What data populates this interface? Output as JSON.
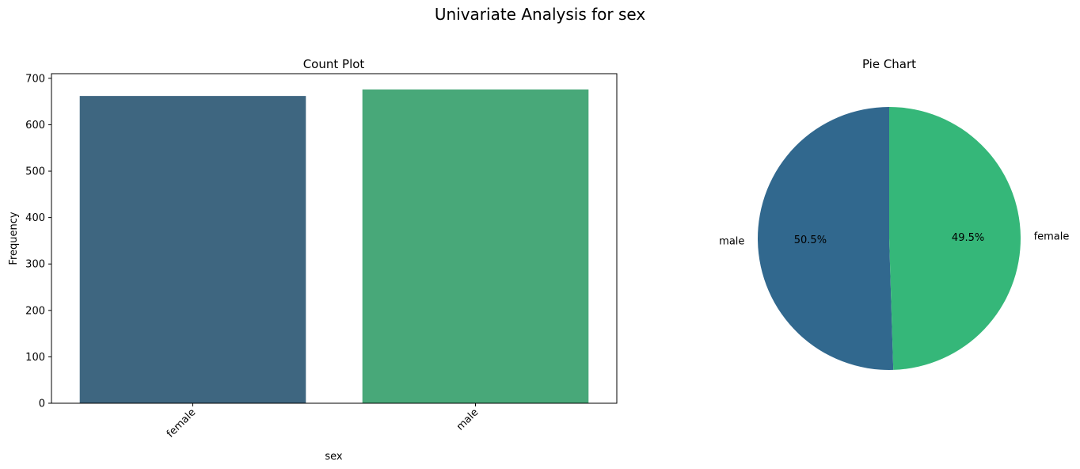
{
  "figure": {
    "title": "Univariate Analysis for sex"
  },
  "colors": {
    "female_bar": "#3e6680",
    "male_bar": "#48a879",
    "male_slice": "#31688e",
    "female_slice": "#35b779",
    "axis": "#000000",
    "background": "#ffffff"
  },
  "chart_data": [
    {
      "type": "bar",
      "title": "Count Plot",
      "xlabel": "sex",
      "ylabel": "Frequency",
      "categories": [
        "female",
        "male"
      ],
      "values": [
        662,
        676
      ],
      "ylim": [
        0,
        710
      ],
      "yticks": [
        0,
        100,
        200,
        300,
        400,
        500,
        600,
        700
      ],
      "ytick_labels": [
        "0",
        "100",
        "200",
        "300",
        "400",
        "500",
        "600",
        "700"
      ],
      "xtick_rotation": 45,
      "grid": false
    },
    {
      "type": "pie",
      "title": "Pie Chart",
      "slices": [
        {
          "label": "male",
          "value": 50.5,
          "pct_label": "50.5%"
        },
        {
          "label": "female",
          "value": 49.5,
          "pct_label": "49.5%"
        }
      ],
      "startangle": 90
    }
  ]
}
